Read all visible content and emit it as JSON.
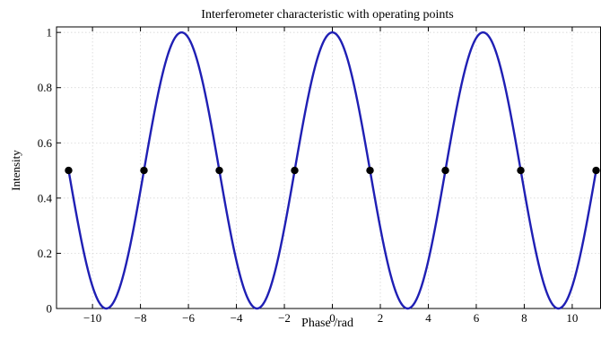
{
  "chart_data": {
    "type": "line",
    "title": "Interferometer characteristic with operating points",
    "xlabel": "Phase /rad",
    "ylabel": "Intensity",
    "xlim": [
      -11.5,
      11.2
    ],
    "ylim": [
      0,
      1.02
    ],
    "xticks": [
      -10,
      -8,
      -6,
      -4,
      -2,
      0,
      2,
      4,
      6,
      8,
      10
    ],
    "xtick_labels": [
      "−10",
      "−8",
      "−6",
      "−4",
      "−2",
      "0",
      "2",
      "4",
      "6",
      "8",
      "10"
    ],
    "yticks": [
      0,
      0.2,
      0.4,
      0.6,
      0.8,
      1
    ],
    "ytick_labels": [
      "0",
      "0.2",
      "0.4",
      "0.6",
      "0.8",
      "1"
    ],
    "grid": true,
    "series": [
      {
        "function": "0.5 + 0.5*cos(x)",
        "x_range": [
          -11.0,
          11.0
        ],
        "color": "#1f1fb4"
      }
    ],
    "operating_points": {
      "x": [
        -10.996,
        -7.854,
        -4.712,
        -1.571,
        1.571,
        4.712,
        7.854,
        10.996
      ],
      "y": [
        0.5,
        0.5,
        0.5,
        0.5,
        0.5,
        0.5,
        0.5,
        0.5
      ],
      "color": "#000000"
    }
  }
}
